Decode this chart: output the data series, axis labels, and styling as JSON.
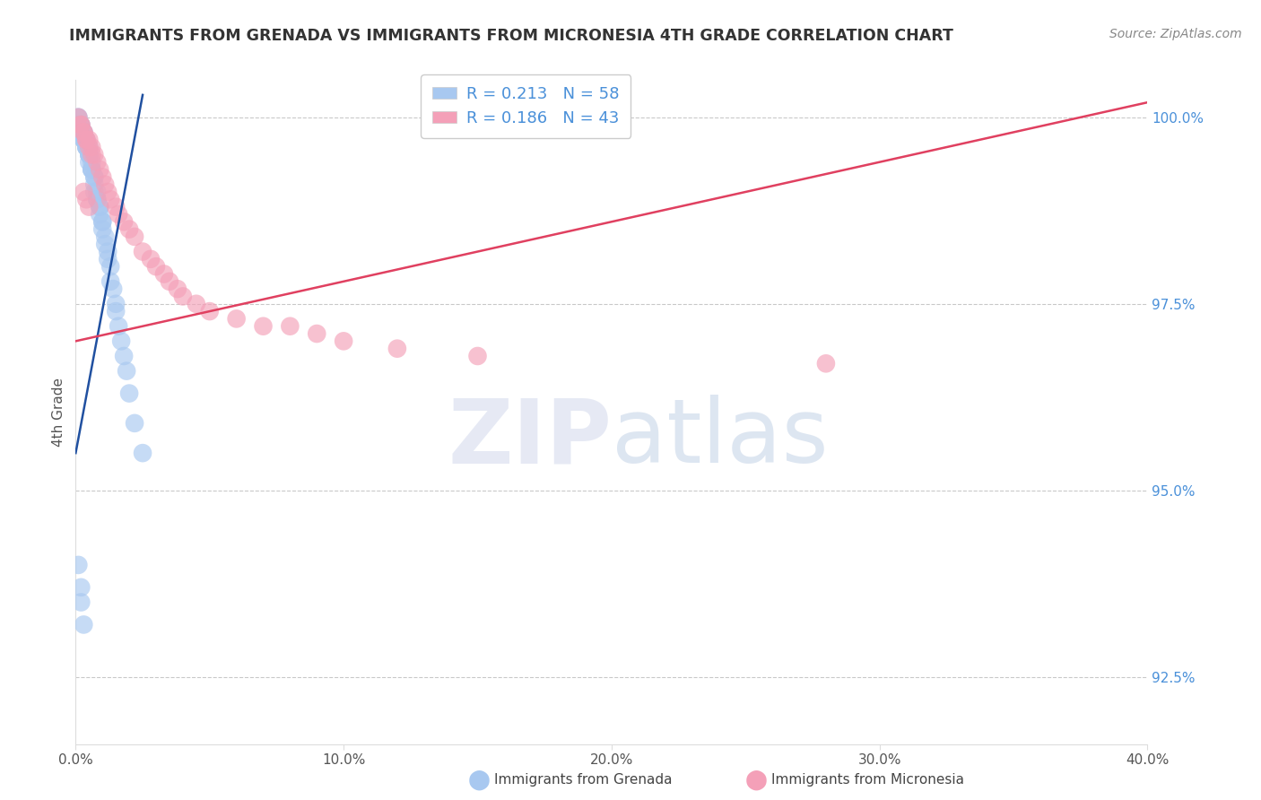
{
  "title": "IMMIGRANTS FROM GRENADA VS IMMIGRANTS FROM MICRONESIA 4TH GRADE CORRELATION CHART",
  "source": "Source: ZipAtlas.com",
  "xlabel_blue": "Immigrants from Grenada",
  "xlabel_pink": "Immigrants from Micronesia",
  "ylabel": "4th Grade",
  "R_blue": 0.213,
  "N_blue": 58,
  "R_pink": 0.186,
  "N_pink": 43,
  "color_blue": "#a8c8f0",
  "color_pink": "#f4a0b8",
  "trendline_blue": "#2050a0",
  "trendline_pink": "#e04060",
  "xlim": [
    0.0,
    0.4
  ],
  "ylim": [
    0.916,
    1.005
  ],
  "yticks": [
    0.925,
    0.95,
    0.975,
    1.0
  ],
  "ytick_labels": [
    "92.5%",
    "95.0%",
    "97.5%",
    "100.0%"
  ],
  "xticks": [
    0.0,
    0.1,
    0.2,
    0.3,
    0.4
  ],
  "xtick_labels": [
    "0.0%",
    "10.0%",
    "20.0%",
    "30.0%",
    "40.0%"
  ],
  "blue_trend_x": [
    0.0,
    0.025
  ],
  "blue_trend_y": [
    0.955,
    1.003
  ],
  "pink_trend_x": [
    0.0,
    0.4
  ],
  "pink_trend_y": [
    0.97,
    1.002
  ],
  "watermark_text": "ZIPatlas",
  "watermark_color": "#d0ddf0",
  "background_color": "#ffffff",
  "grid_color": "#bbbbbb",
  "ylabel_color": "#555555",
  "ytick_color": "#4a90d9",
  "xtick_color": "#555555",
  "title_color": "#333333",
  "source_color": "#888888",
  "legend_R_color": "#4a90d9",
  "legend_N_color": "#4a90d9",
  "blue_x": [
    0.001,
    0.001,
    0.001,
    0.002,
    0.002,
    0.002,
    0.002,
    0.003,
    0.003,
    0.003,
    0.003,
    0.003,
    0.004,
    0.004,
    0.004,
    0.004,
    0.005,
    0.005,
    0.005,
    0.005,
    0.005,
    0.006,
    0.006,
    0.006,
    0.006,
    0.007,
    0.007,
    0.007,
    0.007,
    0.008,
    0.008,
    0.008,
    0.009,
    0.009,
    0.009,
    0.01,
    0.01,
    0.01,
    0.011,
    0.011,
    0.012,
    0.012,
    0.013,
    0.013,
    0.014,
    0.015,
    0.015,
    0.016,
    0.017,
    0.018,
    0.019,
    0.02,
    0.022,
    0.025,
    0.001,
    0.002,
    0.002,
    0.003
  ],
  "blue_y": [
    1.0,
    1.0,
    0.999,
    0.999,
    0.999,
    0.998,
    0.998,
    0.998,
    0.998,
    0.997,
    0.997,
    0.997,
    0.997,
    0.996,
    0.996,
    0.996,
    0.996,
    0.995,
    0.995,
    0.995,
    0.994,
    0.994,
    0.993,
    0.993,
    0.993,
    0.992,
    0.992,
    0.991,
    0.99,
    0.99,
    0.989,
    0.989,
    0.988,
    0.988,
    0.987,
    0.986,
    0.986,
    0.985,
    0.984,
    0.983,
    0.982,
    0.981,
    0.98,
    0.978,
    0.977,
    0.975,
    0.974,
    0.972,
    0.97,
    0.968,
    0.966,
    0.963,
    0.959,
    0.955,
    0.94,
    0.937,
    0.935,
    0.932
  ],
  "pink_x": [
    0.001,
    0.002,
    0.002,
    0.003,
    0.003,
    0.004,
    0.004,
    0.005,
    0.005,
    0.006,
    0.006,
    0.007,
    0.008,
    0.009,
    0.01,
    0.011,
    0.012,
    0.013,
    0.015,
    0.016,
    0.018,
    0.02,
    0.022,
    0.025,
    0.028,
    0.03,
    0.033,
    0.035,
    0.038,
    0.04,
    0.045,
    0.05,
    0.06,
    0.07,
    0.08,
    0.09,
    0.1,
    0.12,
    0.15,
    0.28,
    0.003,
    0.004,
    0.005
  ],
  "pink_y": [
    1.0,
    0.999,
    0.999,
    0.998,
    0.998,
    0.997,
    0.997,
    0.997,
    0.996,
    0.996,
    0.995,
    0.995,
    0.994,
    0.993,
    0.992,
    0.991,
    0.99,
    0.989,
    0.988,
    0.987,
    0.986,
    0.985,
    0.984,
    0.982,
    0.981,
    0.98,
    0.979,
    0.978,
    0.977,
    0.976,
    0.975,
    0.974,
    0.973,
    0.972,
    0.972,
    0.971,
    0.97,
    0.969,
    0.968,
    0.967,
    0.99,
    0.989,
    0.988
  ]
}
